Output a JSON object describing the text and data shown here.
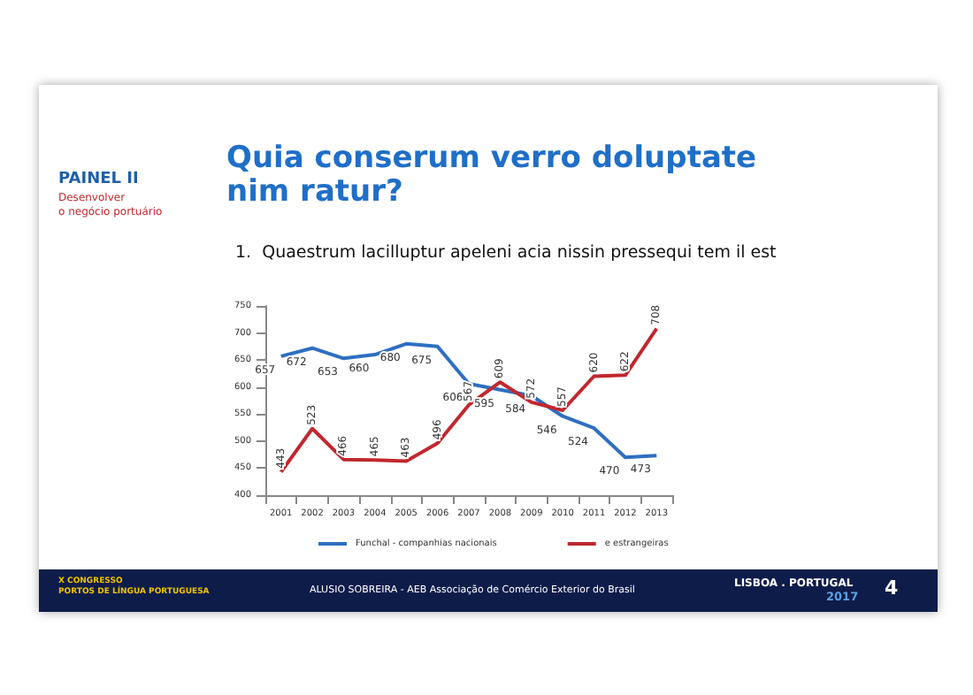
{
  "chart_data": {
    "type": "line",
    "title": "Quia conserum verro doluptate\nnim ratur?",
    "subtitle": "1.  Quaestrum lacilluptur apeleni acia nissin pressequi tem il est",
    "annotations": [
      "PAINEL II",
      "Desenvolver\no negócio portuário",
      "X CONGRESSO\nPORTOS DE LÍNGUA PORTUGUESA",
      "ALUSIO SOBREIRA - AEB Associação de Comércio Exterior do Brasil",
      "LISBOA . PORTUGAL",
      "2017",
      "4"
    ],
    "categories": [
      "2001",
      "2002",
      "2003",
      "2004",
      "2005",
      "2006",
      "2007",
      "2008",
      "2009",
      "2010",
      "2011",
      "2012",
      "2013"
    ],
    "series": [
      {
        "name": "Funchal - companhias nacionais",
        "color": "#2e6fc0",
        "values": [
          657,
          672,
          653,
          660,
          680,
          675,
          606,
          595,
          584,
          546,
          524,
          470,
          473
        ]
      },
      {
        "name": "e estrangeiras",
        "color": "#c0282e",
        "values": [
          443,
          523,
          466,
          465,
          463,
          496,
          567,
          609,
          572,
          557,
          620,
          622,
          708
        ]
      }
    ],
    "ylim": [
      400,
      750
    ],
    "yticks": [
      400,
      450,
      500,
      550,
      600,
      650,
      700,
      750
    ],
    "grid": false,
    "legend": "bottom",
    "data_labels": true,
    "marker": "none",
    "line_style": "solid"
  }
}
